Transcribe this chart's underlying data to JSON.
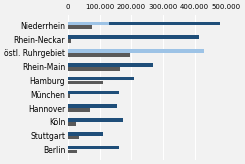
{
  "categories": [
    "Niederrhein",
    "Rhein-Neckar",
    "östl. Ruhrgebiet",
    "Rhein-Main",
    "Hamburg",
    "München",
    "Hannover",
    "Köln",
    "Stuttgart",
    "Berlin"
  ],
  "series_dark": [
    480000,
    415000,
    295000,
    270000,
    210000,
    160000,
    155000,
    175000,
    110000,
    160000
  ],
  "series_light": [
    130000,
    0,
    430000,
    0,
    0,
    0,
    0,
    0,
    0,
    0
  ],
  "series_gray": [
    75000,
    10000,
    195000,
    165000,
    110000,
    5000,
    70000,
    25000,
    35000,
    30000
  ],
  "color_dark": "#1F4E79",
  "color_light": "#9DC3E6",
  "color_gray": "#595959",
  "xlim": [
    0,
    500000
  ],
  "xticks": [
    0,
    100000,
    200000,
    300000,
    400000,
    500000
  ],
  "bar_height": 0.27,
  "background_color": "#F2F2F2",
  "grid_color": "#FFFFFF",
  "label_fontsize": 5.5,
  "tick_fontsize": 5.0
}
